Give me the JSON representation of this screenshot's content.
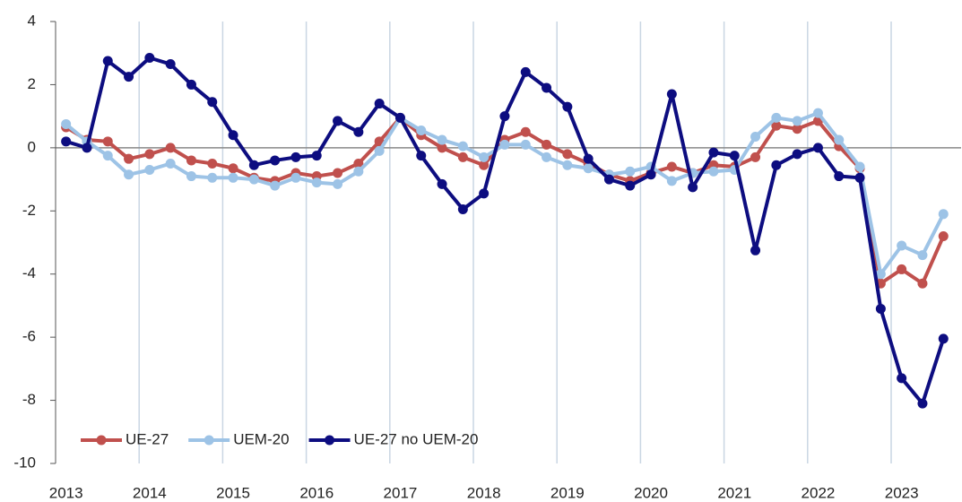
{
  "chart_data": {
    "type": "line",
    "categories": [
      "2013",
      null,
      null,
      null,
      "2014",
      null,
      null,
      null,
      "2015",
      null,
      null,
      null,
      "2016",
      null,
      null,
      null,
      "2017",
      null,
      null,
      null,
      "2018",
      null,
      null,
      null,
      "2019",
      null,
      null,
      null,
      "2020",
      null,
      null,
      null,
      "2021",
      null,
      null,
      null,
      "2022",
      null,
      null,
      null,
      "2023",
      null,
      null
    ],
    "series": [
      {
        "name": "UE-27",
        "color": "#c0504d",
        "values": [
          0.65,
          0.25,
          0.2,
          -0.35,
          -0.2,
          0,
          -0.4,
          -0.5,
          -0.65,
          -0.95,
          -1.05,
          -0.8,
          -0.9,
          -0.8,
          -0.5,
          0.2,
          0.95,
          0.4,
          0,
          -0.3,
          -0.55,
          0.25,
          0.5,
          0.1,
          -0.2,
          -0.5,
          -0.85,
          -1.05,
          -0.8,
          -0.6,
          -0.8,
          -0.55,
          -0.6,
          -0.3,
          0.7,
          0.6,
          0.85,
          0.05,
          -0.65,
          -4.3,
          -3.85,
          -4.3,
          -2.8
        ]
      },
      {
        "name": "UEM-20",
        "color": "#9dc3e6",
        "values": [
          0.75,
          0.2,
          -0.25,
          -0.85,
          -0.7,
          -0.5,
          -0.9,
          -0.95,
          -0.95,
          -1.0,
          -1.2,
          -0.95,
          -1.1,
          -1.15,
          -0.75,
          -0.1,
          0.95,
          0.55,
          0.25,
          0.05,
          -0.3,
          0.1,
          0.1,
          -0.3,
          -0.55,
          -0.65,
          -0.85,
          -0.75,
          -0.6,
          -1.05,
          -0.8,
          -0.75,
          -0.7,
          0.35,
          0.95,
          0.85,
          1.1,
          0.25,
          -0.6,
          -4.0,
          -3.1,
          -3.4,
          -2.1
        ]
      },
      {
        "name": "UE-27 no UEM-20",
        "color": "#0d0d80",
        "values": [
          0.2,
          0,
          2.75,
          2.25,
          2.85,
          2.65,
          2.0,
          1.45,
          0.4,
          -0.55,
          -0.4,
          -0.3,
          -0.25,
          0.85,
          0.5,
          1.4,
          0.95,
          -0.25,
          -1.15,
          -1.95,
          -1.45,
          1.0,
          2.4,
          1.9,
          1.3,
          -0.35,
          -1.0,
          -1.2,
          -0.85,
          1.7,
          -1.25,
          -0.15,
          -0.25,
          -3.25,
          -0.55,
          -0.2,
          0,
          -0.9,
          -0.95,
          -5.1,
          -7.3,
          -8.1,
          -6.05
        ]
      }
    ],
    "ylim": [
      -10,
      4
    ],
    "yticks": [
      -10,
      -8,
      -6,
      -4,
      -2,
      0,
      2,
      4
    ],
    "grid": true,
    "legend": "bottom-left"
  }
}
